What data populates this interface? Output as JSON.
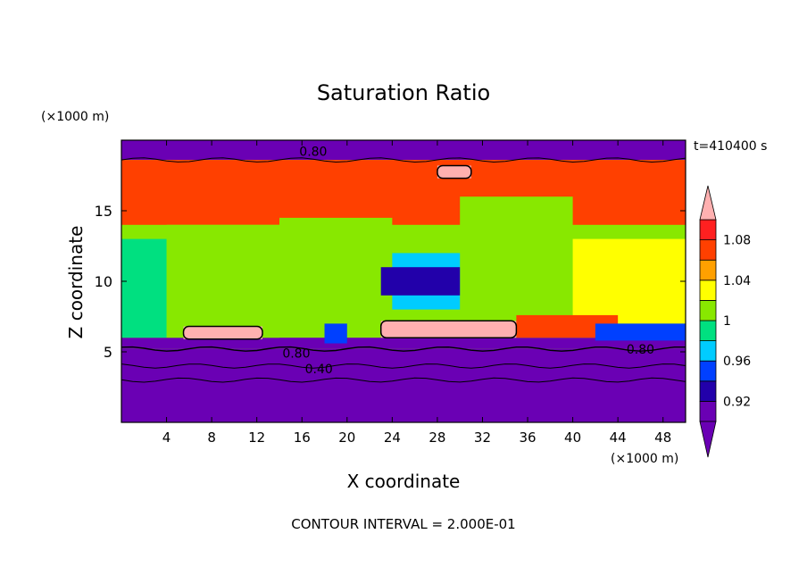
{
  "chart_data": {
    "type": "heatmap",
    "title": "Saturation Ratio",
    "xlabel": "X coordinate",
    "ylabel": "Z coordinate",
    "x_unit": "(×1000 m)",
    "y_unit": "(×1000 m)",
    "time_label": "t=410400 s",
    "footer": "CONTOUR INTERVAL = 2.000E-01",
    "xlim": [
      0,
      50
    ],
    "ylim": [
      0,
      20
    ],
    "x_ticks": [
      4,
      8,
      12,
      16,
      20,
      24,
      28,
      32,
      36,
      40,
      44,
      48
    ],
    "y_ticks": [
      5,
      10,
      15
    ],
    "colorbar": {
      "levels": [
        0.9,
        0.92,
        0.94,
        0.96,
        0.98,
        1.0,
        1.02,
        1.04,
        1.06,
        1.08,
        1.1
      ],
      "tick_labels": [
        "0.92",
        "0.96",
        "1",
        "1.04",
        "1.08"
      ],
      "tick_values": [
        0.92,
        0.96,
        1.0,
        1.04,
        1.08
      ],
      "colors": [
        "#6a00b4",
        "#2200aa",
        "#0040ff",
        "#00ccff",
        "#00e080",
        "#88e800",
        "#ffff00",
        "#ffa000",
        "#ff4000",
        "#ff2020",
        "#ffb0b0"
      ],
      "under_color": "#6a00b4",
      "over_color": "#ffb0b0"
    },
    "contour_labels": [
      {
        "text": "0.80",
        "x": 17,
        "z": 19.2
      },
      {
        "text": "0.80",
        "x": 15.5,
        "z": 4.9
      },
      {
        "text": "0.40",
        "x": 17.5,
        "z": 3.8
      },
      {
        "text": "0.80",
        "x": 46,
        "z": 5.2
      }
    ],
    "regions": [
      {
        "value": 0.85,
        "x": [
          0,
          50
        ],
        "z": [
          0,
          5.2
        ]
      },
      {
        "value": 0.91,
        "x": [
          0,
          50
        ],
        "z": [
          5.2,
          6.0
        ]
      },
      {
        "value": 0.85,
        "x": [
          0,
          50
        ],
        "z": [
          18.6,
          20
        ]
      },
      {
        "value": 1.07,
        "x": [
          0,
          50
        ],
        "z": [
          14.0,
          18.6
        ]
      },
      {
        "value": 1.01,
        "x": [
          4,
          14
        ],
        "z": [
          6.0,
          14.0
        ]
      },
      {
        "value": 1.01,
        "x": [
          14,
          24
        ],
        "z": [
          6.5,
          14.5
        ]
      },
      {
        "value": 1.01,
        "x": [
          30,
          40
        ],
        "z": [
          7.0,
          16.0
        ]
      },
      {
        "value": 0.99,
        "x": [
          0,
          4
        ],
        "z": [
          6.0,
          13.0
        ]
      },
      {
        "value": 0.97,
        "x": [
          24,
          30
        ],
        "z": [
          8.0,
          12.0
        ]
      },
      {
        "value": 0.93,
        "x": [
          23,
          30
        ],
        "z": [
          9.0,
          11.0
        ]
      },
      {
        "value": 1.03,
        "x": [
          40,
          50
        ],
        "z": [
          7.0,
          13.0
        ]
      },
      {
        "value": 1.1,
        "x": [
          5.5,
          12.5
        ],
        "z": [
          5.9,
          6.8
        ]
      },
      {
        "value": 1.1,
        "x": [
          23,
          35
        ],
        "z": [
          6.0,
          7.2
        ]
      },
      {
        "value": 1.07,
        "x": [
          35,
          44
        ],
        "z": [
          6.0,
          7.6
        ]
      },
      {
        "value": 1.1,
        "x": [
          28,
          31
        ],
        "z": [
          17.3,
          18.2
        ]
      },
      {
        "value": 0.95,
        "x": [
          18,
          20
        ],
        "z": [
          5.6,
          7.0
        ]
      },
      {
        "value": 0.95,
        "x": [
          42,
          50
        ],
        "z": [
          5.8,
          7.0
        ]
      }
    ]
  }
}
